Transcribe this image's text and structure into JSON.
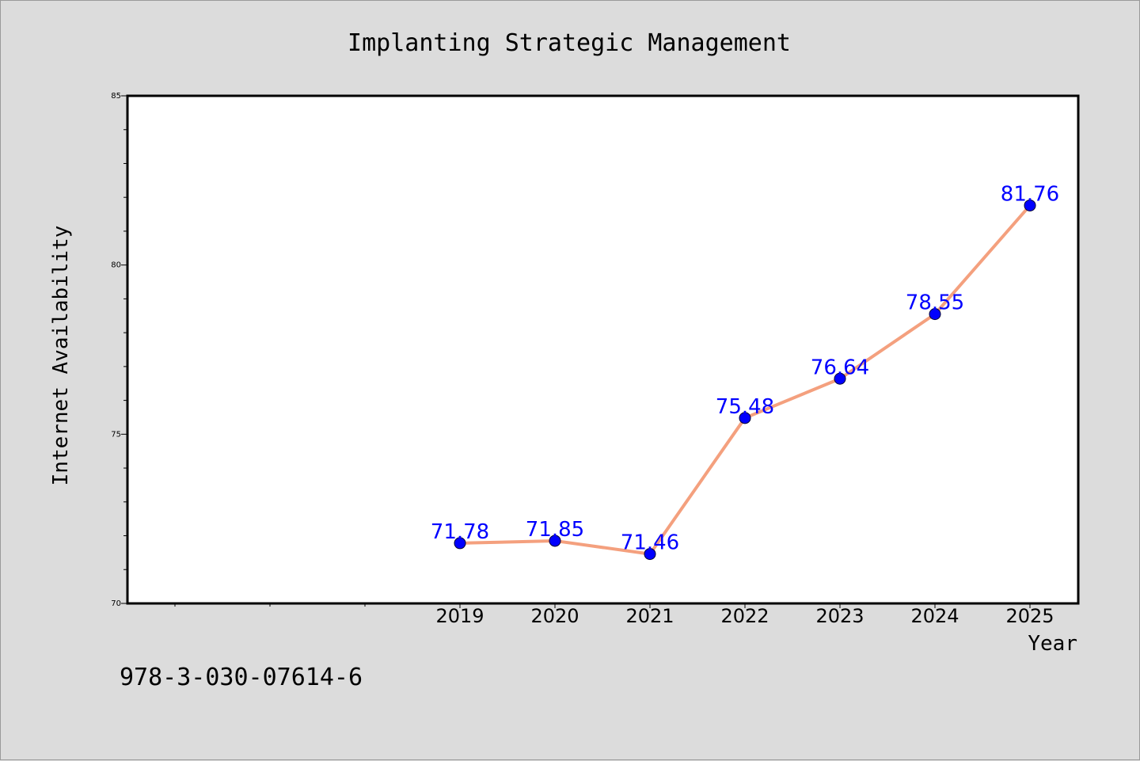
{
  "chart_data": {
    "type": "line",
    "title": "Implanting Strategic Management",
    "xlabel": "Year",
    "ylabel": "Internet Availability",
    "categories": [
      "2019",
      "2020",
      "2021",
      "2022",
      "2023",
      "2024",
      "2025"
    ],
    "values": [
      71.78,
      71.85,
      71.46,
      75.48,
      76.64,
      78.55,
      81.76
    ],
    "data_labels": [
      "71.78",
      "71.85",
      "71.46",
      "75.48",
      "76.64",
      "78.55",
      "81.76"
    ],
    "ylim": [
      70,
      85
    ],
    "yticks": [
      70,
      75,
      80,
      85
    ],
    "ytick_labels": [
      "70",
      "75",
      "80",
      "85"
    ],
    "grid": false,
    "line_color": "#f4a07e",
    "marker_color": "#0000ff",
    "label_color": "#0000ff",
    "background_color": "#dcdcdc",
    "plot_background_color": "#ffffff"
  },
  "footer": {
    "isbn": "978-3-030-07614-6"
  }
}
